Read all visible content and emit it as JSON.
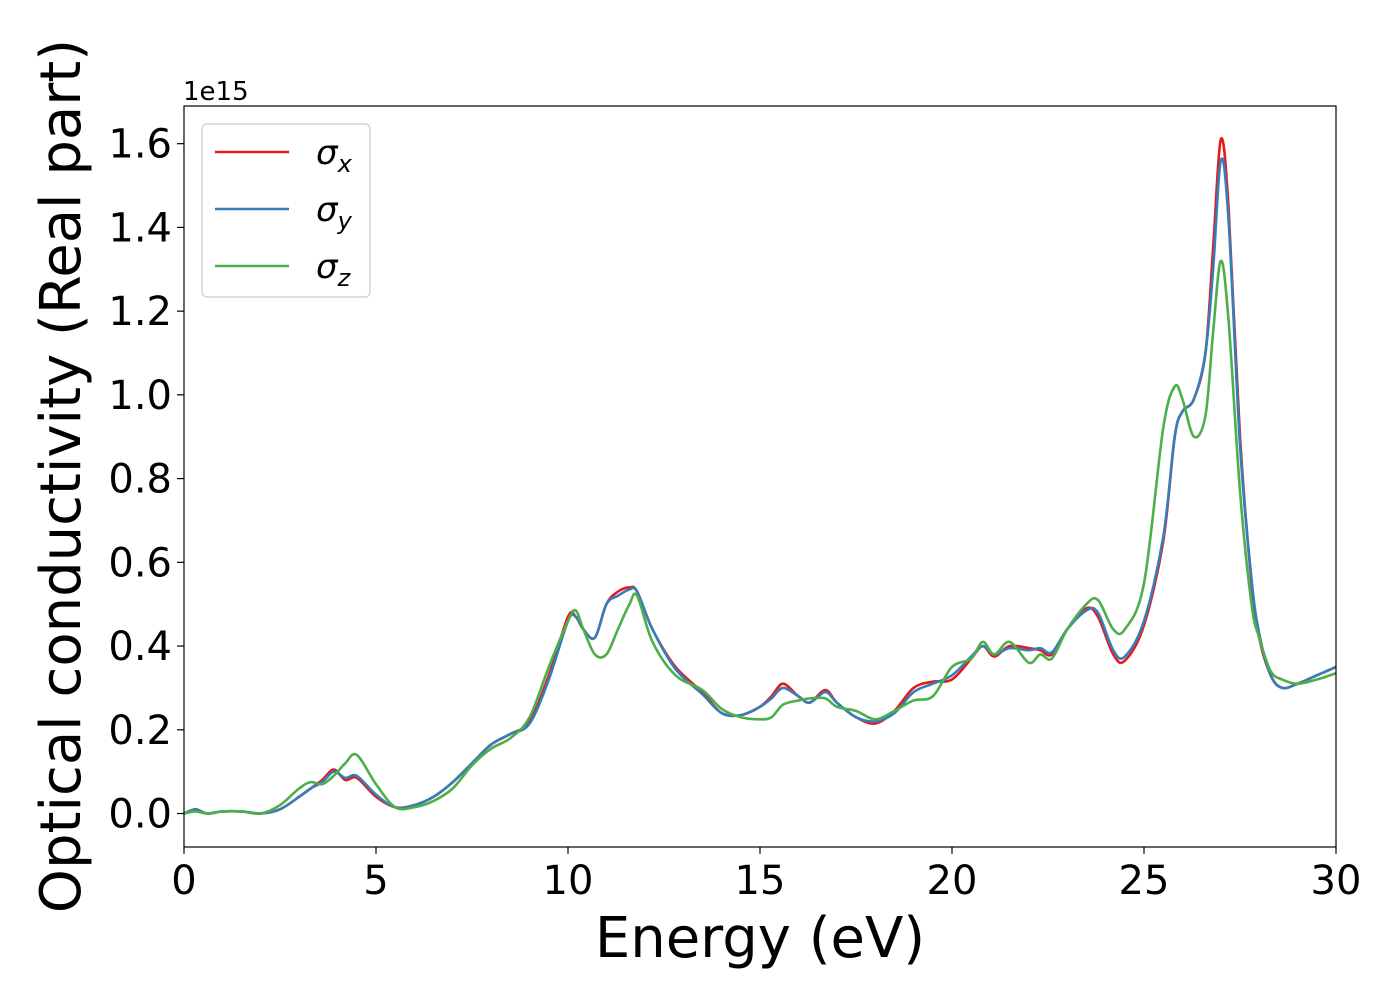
{
  "chart_data": {
    "type": "line",
    "xlabel": "Energy (eV)",
    "ylabel": "Optical conductivity (Real part)",
    "offset_text": "1e15",
    "xlim": [
      0,
      30
    ],
    "ylim": [
      -0.08,
      1.69
    ],
    "xticks": [
      0,
      5,
      10,
      15,
      20,
      25,
      30
    ],
    "xtick_labels": [
      "0",
      "5",
      "10",
      "15",
      "20",
      "25",
      "30"
    ],
    "yticks": [
      0.0,
      0.2,
      0.4,
      0.6,
      0.8,
      1.0,
      1.2,
      1.4,
      1.6
    ],
    "ytick_labels": [
      "0.0",
      "0.2",
      "0.4",
      "0.6",
      "0.8",
      "1.0",
      "1.2",
      "1.4",
      "1.6"
    ],
    "y_scale_factor": "1e15",
    "grid": false,
    "legend_position": "upper-left",
    "series": [
      {
        "name": "σx",
        "legend_main": "σ",
        "legend_sub": "x",
        "color": "#e41a1c",
        "x": [
          0,
          0.3,
          0.6,
          1.0,
          1.5,
          2.0,
          2.5,
          3.0,
          3.3,
          3.6,
          3.9,
          4.2,
          4.5,
          5.0,
          5.5,
          6.0,
          6.5,
          7.0,
          7.5,
          8.0,
          8.5,
          9.0,
          9.5,
          10.0,
          10.2,
          10.4,
          10.7,
          11.0,
          11.3,
          11.6,
          11.8,
          12.2,
          12.8,
          13.5,
          14.0,
          14.5,
          15.0,
          15.3,
          15.6,
          16.0,
          16.3,
          16.7,
          17.0,
          17.5,
          18.0,
          18.5,
          19.0,
          19.5,
          20.0,
          20.5,
          20.8,
          21.1,
          21.5,
          22.0,
          22.3,
          22.6,
          23.0,
          23.5,
          23.8,
          24.2,
          24.5,
          25.0,
          25.5,
          25.8,
          26.0,
          26.3,
          26.6,
          26.8,
          27.0,
          27.2,
          27.5,
          27.8,
          28.0,
          28.3,
          28.6,
          29.0,
          29.5,
          30.0
        ],
        "values": [
          0.0,
          0.01,
          0.0,
          0.005,
          0.005,
          0.0,
          0.01,
          0.04,
          0.06,
          0.08,
          0.105,
          0.08,
          0.085,
          0.04,
          0.015,
          0.02,
          0.04,
          0.075,
          0.12,
          0.165,
          0.19,
          0.22,
          0.33,
          0.47,
          0.47,
          0.44,
          0.42,
          0.5,
          0.53,
          0.54,
          0.53,
          0.44,
          0.35,
          0.29,
          0.24,
          0.235,
          0.255,
          0.28,
          0.31,
          0.28,
          0.265,
          0.295,
          0.265,
          0.23,
          0.215,
          0.245,
          0.3,
          0.315,
          0.32,
          0.37,
          0.4,
          0.375,
          0.4,
          0.395,
          0.39,
          0.38,
          0.44,
          0.49,
          0.47,
          0.38,
          0.365,
          0.45,
          0.65,
          0.9,
          0.96,
          0.99,
          1.1,
          1.35,
          1.61,
          1.45,
          0.9,
          0.55,
          0.42,
          0.33,
          0.3,
          0.31,
          0.33,
          0.35
        ]
      },
      {
        "name": "σy",
        "legend_main": "σ",
        "legend_sub": "y",
        "color": "#377eb8",
        "x": [
          0,
          0.3,
          0.6,
          1.0,
          1.5,
          2.0,
          2.5,
          3.0,
          3.3,
          3.6,
          3.9,
          4.2,
          4.5,
          5.0,
          5.5,
          6.0,
          6.5,
          7.0,
          7.5,
          8.0,
          8.5,
          9.0,
          9.5,
          10.0,
          10.2,
          10.4,
          10.7,
          11.0,
          11.3,
          11.6,
          11.8,
          12.2,
          12.8,
          13.5,
          14.0,
          14.5,
          15.0,
          15.3,
          15.6,
          16.0,
          16.3,
          16.7,
          17.0,
          17.5,
          18.0,
          18.5,
          19.0,
          19.5,
          20.0,
          20.5,
          20.8,
          21.1,
          21.5,
          22.0,
          22.3,
          22.6,
          23.0,
          23.5,
          23.8,
          24.2,
          24.5,
          25.0,
          25.5,
          25.8,
          26.0,
          26.3,
          26.6,
          26.8,
          27.0,
          27.2,
          27.5,
          27.8,
          28.0,
          28.3,
          28.6,
          29.0,
          29.5,
          30.0
        ],
        "values": [
          0.0,
          0.01,
          0.0,
          0.005,
          0.005,
          0.0,
          0.01,
          0.04,
          0.06,
          0.075,
          0.1,
          0.085,
          0.09,
          0.045,
          0.015,
          0.02,
          0.04,
          0.075,
          0.12,
          0.165,
          0.19,
          0.215,
          0.32,
          0.46,
          0.47,
          0.44,
          0.42,
          0.5,
          0.52,
          0.535,
          0.53,
          0.44,
          0.345,
          0.285,
          0.24,
          0.235,
          0.255,
          0.275,
          0.3,
          0.28,
          0.265,
          0.29,
          0.265,
          0.23,
          0.22,
          0.24,
          0.29,
          0.31,
          0.33,
          0.375,
          0.4,
          0.38,
          0.395,
          0.39,
          0.395,
          0.385,
          0.44,
          0.485,
          0.48,
          0.39,
          0.375,
          0.46,
          0.66,
          0.9,
          0.96,
          0.99,
          1.1,
          1.3,
          1.56,
          1.42,
          0.88,
          0.56,
          0.43,
          0.33,
          0.3,
          0.31,
          0.33,
          0.35
        ]
      },
      {
        "name": "σz",
        "legend_main": "σ",
        "legend_sub": "z",
        "color": "#4daf4a",
        "x": [
          0,
          0.3,
          0.6,
          1.0,
          1.5,
          2.0,
          2.5,
          3.0,
          3.3,
          3.6,
          3.9,
          4.2,
          4.5,
          5.0,
          5.5,
          6.0,
          6.5,
          7.0,
          7.5,
          8.0,
          8.5,
          9.0,
          9.5,
          10.0,
          10.2,
          10.4,
          10.7,
          11.0,
          11.3,
          11.6,
          11.8,
          12.2,
          12.8,
          13.5,
          14.0,
          14.5,
          15.0,
          15.3,
          15.6,
          16.0,
          16.3,
          16.7,
          17.0,
          17.5,
          18.0,
          18.5,
          19.0,
          19.5,
          20.0,
          20.5,
          20.8,
          21.1,
          21.5,
          22.0,
          22.3,
          22.6,
          23.0,
          23.5,
          23.8,
          24.2,
          24.5,
          25.0,
          25.5,
          25.8,
          26.0,
          26.3,
          26.6,
          26.8,
          27.0,
          27.2,
          27.5,
          27.8,
          28.0,
          28.3,
          28.6,
          29.0,
          29.5,
          30.0
        ],
        "values": [
          0.0,
          0.005,
          0.0,
          0.005,
          0.005,
          0.0,
          0.02,
          0.06,
          0.075,
          0.07,
          0.09,
          0.12,
          0.14,
          0.07,
          0.015,
          0.015,
          0.03,
          0.06,
          0.115,
          0.155,
          0.18,
          0.23,
          0.35,
          0.46,
          0.485,
          0.44,
          0.38,
          0.38,
          0.44,
          0.5,
          0.52,
          0.41,
          0.33,
          0.295,
          0.25,
          0.23,
          0.225,
          0.23,
          0.26,
          0.27,
          0.275,
          0.275,
          0.255,
          0.245,
          0.225,
          0.245,
          0.27,
          0.28,
          0.35,
          0.37,
          0.41,
          0.38,
          0.41,
          0.36,
          0.38,
          0.37,
          0.44,
          0.5,
          0.51,
          0.44,
          0.44,
          0.55,
          0.92,
          1.02,
          0.99,
          0.9,
          0.95,
          1.15,
          1.32,
          1.18,
          0.77,
          0.5,
          0.42,
          0.34,
          0.32,
          0.31,
          0.32,
          0.335
        ]
      }
    ]
  }
}
